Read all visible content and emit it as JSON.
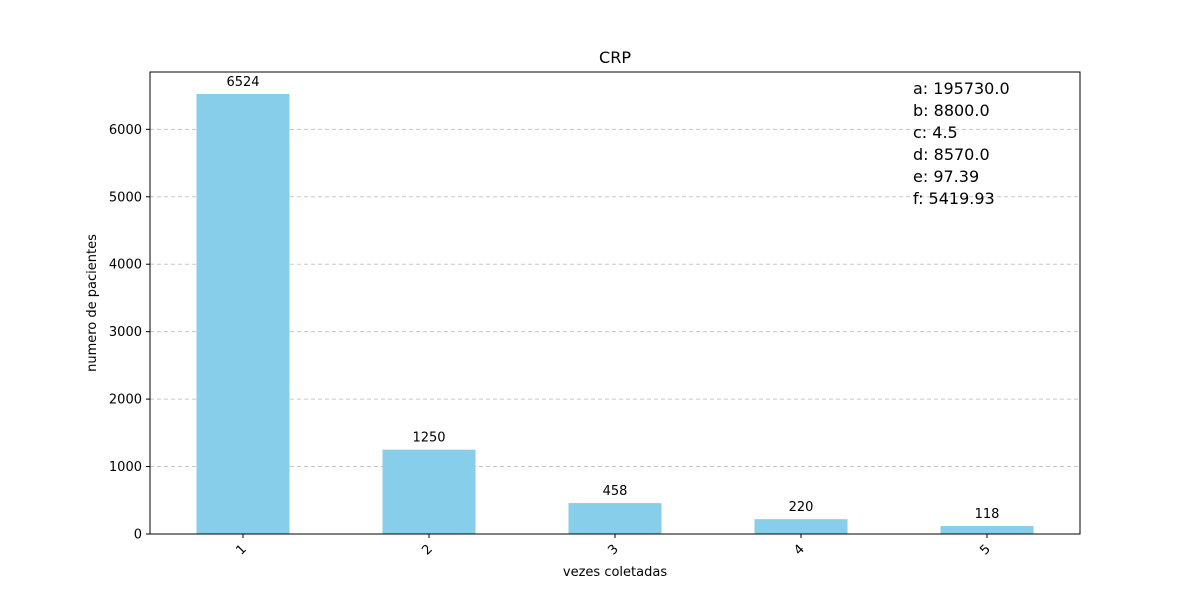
{
  "chart_data": {
    "type": "bar",
    "title": "CRP",
    "xlabel": "vezes coletadas",
    "ylabel": "numero de pacientes",
    "categories": [
      "1",
      "2",
      "3",
      "4",
      "5"
    ],
    "values": [
      6524,
      1250,
      458,
      220,
      118
    ],
    "data_labels": [
      "6524",
      "1250",
      "458",
      "220",
      "118"
    ],
    "ylim": [
      0,
      6850
    ],
    "yticks": [
      0,
      1000,
      2000,
      3000,
      4000,
      5000,
      6000
    ],
    "ytick_labels": [
      "0",
      "1000",
      "2000",
      "3000",
      "4000",
      "5000",
      "6000"
    ],
    "xtick_rotation": 45,
    "grid": {
      "axis": "y",
      "style": "dashed",
      "color": "#c8c8c8"
    },
    "bar_color": "#87ceeb",
    "annotations": [
      "a: 195730.0",
      "b: 8800.0",
      "c: 4.5",
      "d: 8570.0",
      "e: 97.39",
      "f: 5419.93"
    ],
    "annotation_placement": "top-right"
  }
}
